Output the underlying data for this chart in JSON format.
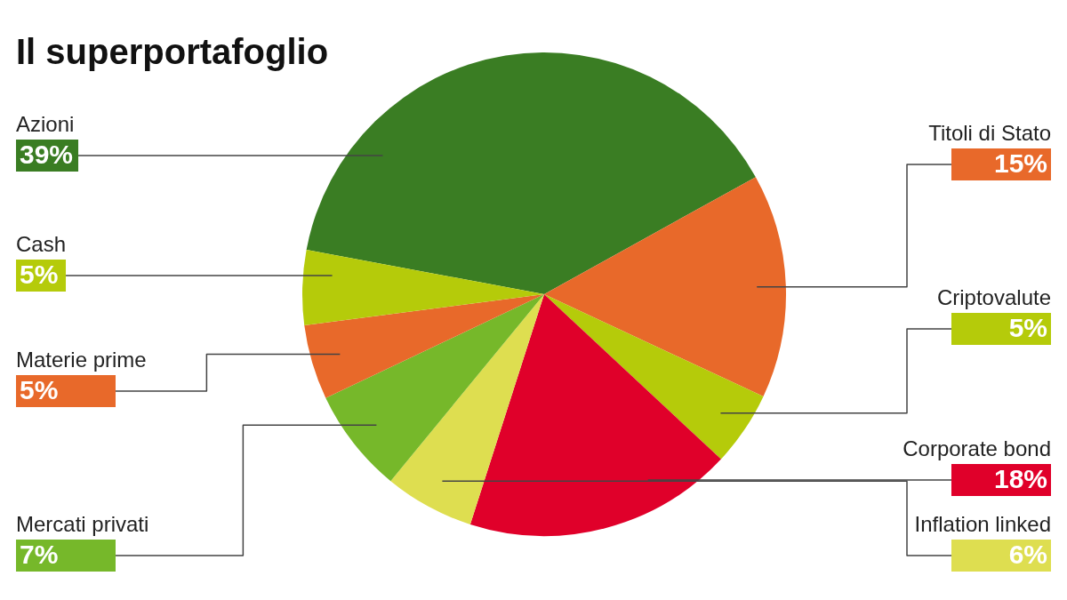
{
  "chart_data": {
    "type": "pie",
    "title": "Il superportafoglio",
    "categories": [
      "Azioni",
      "Titoli di Stato",
      "Criptovalute",
      "Corporate bond",
      "Inflation linked",
      "Mercati privati",
      "Materie prime",
      "Cash"
    ],
    "values": [
      39,
      15,
      5,
      18,
      6,
      7,
      5,
      5
    ],
    "value_labels": [
      "39%",
      "15%",
      "5%",
      "18%",
      "6%",
      "7%",
      "5%",
      "5%"
    ],
    "colors": [
      "#3a7d23",
      "#e8692a",
      "#b5cb0a",
      "#e0002a",
      "#dede50",
      "#76b82a",
      "#e8692a",
      "#b5cb0a"
    ]
  }
}
